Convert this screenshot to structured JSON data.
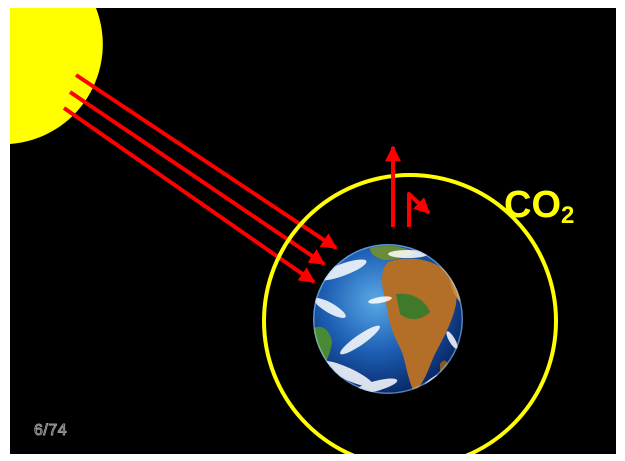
{
  "colors": {
    "background": "#000000",
    "sun": "#ffff00",
    "arrows": "#ff0000",
    "atmosphere_ring": "#ffff00",
    "label": "#ffff00"
  },
  "icons": {
    "sun": "sun-icon",
    "earth": "earth-icon"
  },
  "diagram": {
    "gas_label": {
      "main": "CO",
      "subscript": "2"
    }
  },
  "slide": {
    "page_number": "6/74"
  }
}
